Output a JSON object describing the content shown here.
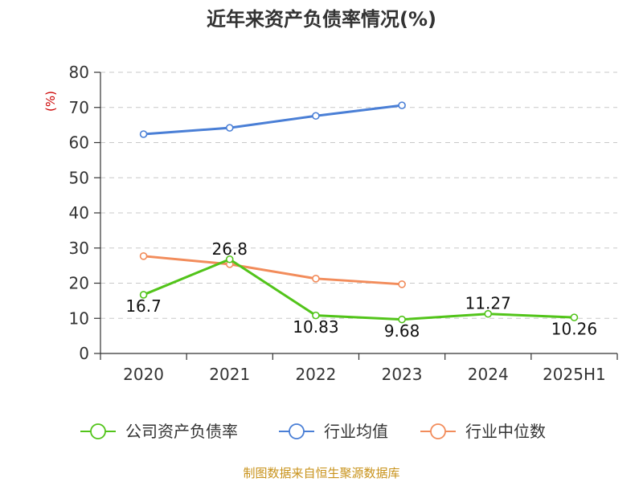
{
  "chart_data": {
    "type": "line",
    "title": "近年来资产负债率情况(%)",
    "ylabel": "(%)",
    "categories": [
      "2020",
      "2021",
      "2022",
      "2023",
      "2024",
      "2025H1"
    ],
    "ylim": [
      0,
      80
    ],
    "yticks": [
      0,
      10,
      20,
      30,
      40,
      50,
      60,
      70,
      80
    ],
    "grid": true,
    "legend_position": "bottom",
    "series": [
      {
        "name": "公司资产负债率",
        "color": "#52c41a",
        "values": [
          16.7,
          26.8,
          10.83,
          9.68,
          11.27,
          10.26
        ],
        "labels": [
          "16.7",
          "26.8",
          "10.83",
          "9.68",
          "11.27",
          "10.26"
        ]
      },
      {
        "name": "行业均值",
        "color": "#4a7fd6",
        "values": [
          62.4,
          64.2,
          67.6,
          70.6,
          null,
          null
        ]
      },
      {
        "name": "行业中位数",
        "color": "#f28c5b",
        "values": [
          27.7,
          25.4,
          21.3,
          19.7,
          null,
          null
        ]
      }
    ]
  },
  "source": "制图数据来自恒生聚源数据库"
}
